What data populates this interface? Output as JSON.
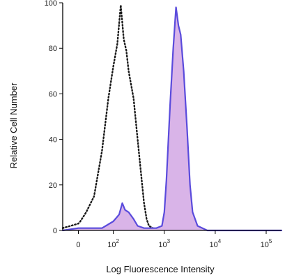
{
  "chart_data": {
    "type": "area",
    "xlabel": "Log Fluorescence Intensity",
    "ylabel": "Relative Cell Number",
    "x_scale": "log",
    "xlim": [
      -40,
      200000
    ],
    "ylim": [
      0,
      100
    ],
    "y_ticks": [
      "0",
      "20",
      "40",
      "60",
      "80",
      "100"
    ],
    "x_ticks": [
      {
        "value": 0,
        "label": "0"
      },
      {
        "value": 100,
        "base": "10",
        "exp": "2"
      },
      {
        "value": 1000,
        "base": "10",
        "exp": "3"
      },
      {
        "value": 10000,
        "base": "10",
        "exp": "4"
      },
      {
        "value": 100000,
        "base": "10",
        "exp": "5"
      }
    ],
    "grid": false,
    "series": [
      {
        "style": "dotted",
        "color": "#1a1a1a",
        "filled": false,
        "points": [
          [
            -40,
            1
          ],
          [
            -20,
            2
          ],
          [
            0,
            3
          ],
          [
            5,
            4
          ],
          [
            20,
            8
          ],
          [
            40,
            15
          ],
          [
            60,
            35
          ],
          [
            80,
            58
          ],
          [
            100,
            72
          ],
          [
            120,
            82
          ],
          [
            140,
            99
          ],
          [
            160,
            84
          ],
          [
            180,
            79
          ],
          [
            200,
            70
          ],
          [
            250,
            58
          ],
          [
            300,
            40
          ],
          [
            350,
            25
          ],
          [
            400,
            12
          ],
          [
            450,
            5
          ],
          [
            500,
            2
          ],
          [
            600,
            1
          ]
        ]
      },
      {
        "style": "solid",
        "color": "#5a4bdc",
        "fill": "#d9b4e8",
        "filled": true,
        "points": [
          [
            -40,
            0
          ],
          [
            0,
            1
          ],
          [
            60,
            1
          ],
          [
            100,
            4
          ],
          [
            130,
            7
          ],
          [
            150,
            12
          ],
          [
            170,
            9
          ],
          [
            200,
            8
          ],
          [
            250,
            5
          ],
          [
            300,
            2
          ],
          [
            400,
            1
          ],
          [
            500,
            1
          ],
          [
            700,
            1
          ],
          [
            900,
            2
          ],
          [
            1000,
            8
          ],
          [
            1100,
            22
          ],
          [
            1300,
            55
          ],
          [
            1500,
            80
          ],
          [
            1700,
            98
          ],
          [
            1900,
            90
          ],
          [
            2100,
            86
          ],
          [
            2400,
            70
          ],
          [
            2800,
            45
          ],
          [
            3200,
            20
          ],
          [
            3600,
            8
          ],
          [
            4500,
            2
          ],
          [
            7000,
            0
          ],
          [
            30000,
            0
          ],
          [
            200000,
            0
          ]
        ]
      }
    ]
  }
}
